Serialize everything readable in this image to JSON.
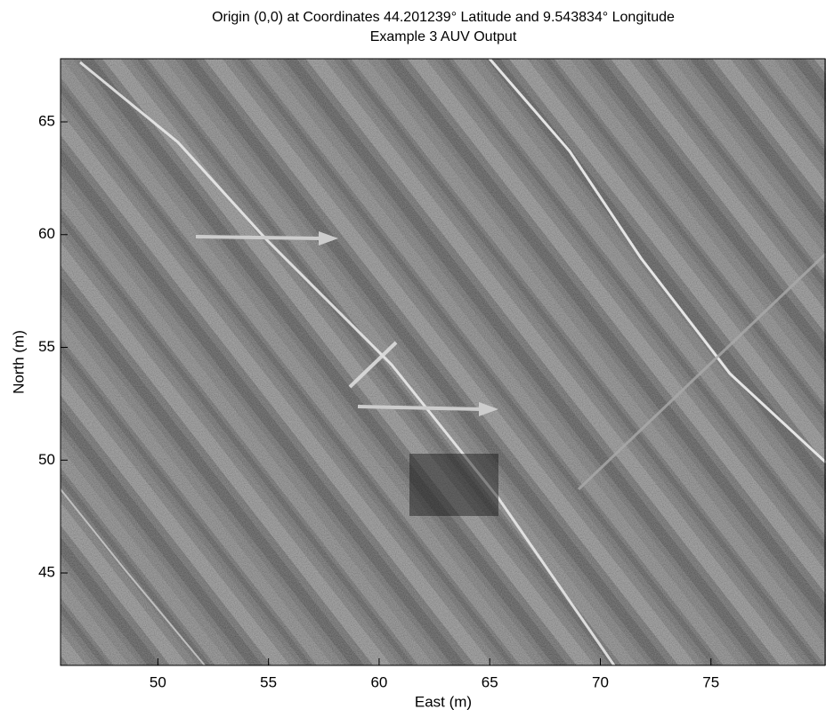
{
  "chart_data": {
    "type": "image",
    "title": "Origin (0,0) at Coordinates 44.201239° Latitude and 9.543834° Longitude",
    "subtitle": "Example 3 AUV Output",
    "x_label": "East (m)",
    "y_label": "North (m)",
    "xlim": [
      45.6,
      80.2
    ],
    "ylim": [
      40.9,
      67.8
    ],
    "xticks": [
      50,
      55,
      60,
      65,
      70,
      75
    ],
    "yticks": [
      45,
      50,
      55,
      60,
      65
    ]
  }
}
